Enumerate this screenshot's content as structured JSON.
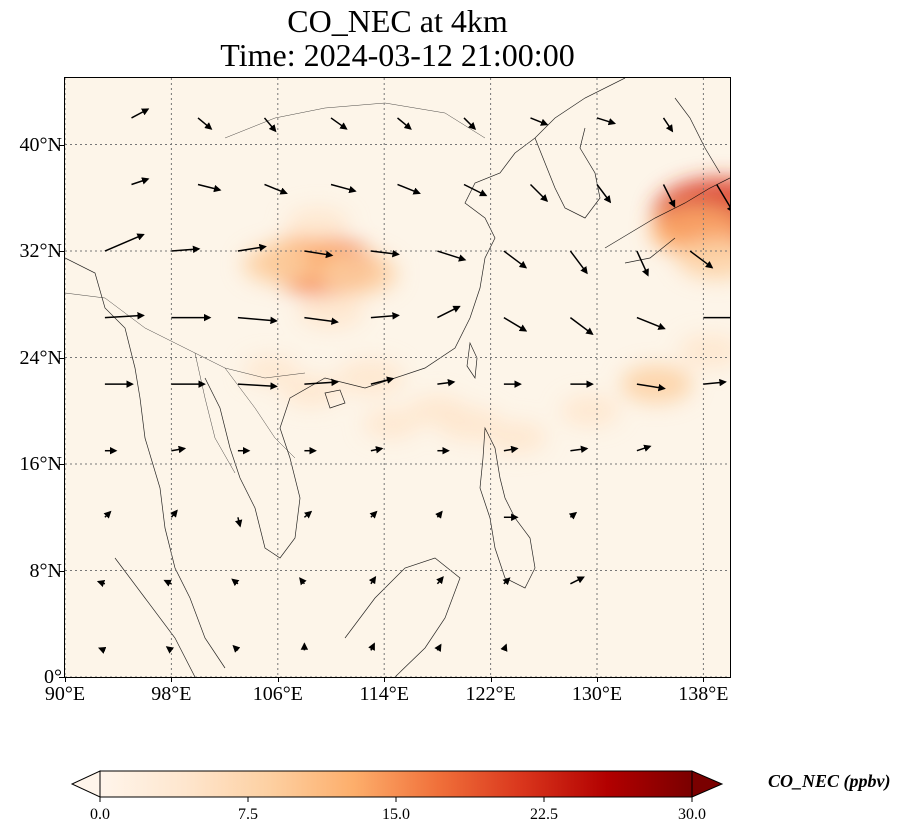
{
  "title": {
    "line1": "CO_NEC at 4km",
    "line2": "Time: 2024-03-12 21:00:00"
  },
  "map": {
    "extent": {
      "lon": [
        90,
        140
      ],
      "lat": [
        0,
        45
      ]
    },
    "gridlines": "dotted",
    "lat_ticks": [
      {
        "value": 40,
        "label": "40°N"
      },
      {
        "value": 32,
        "label": "32°N"
      },
      {
        "value": 24,
        "label": "24°N"
      },
      {
        "value": 16,
        "label": "16°N"
      },
      {
        "value": 8,
        "label": "8°N"
      },
      {
        "value": 0,
        "label": "0°"
      }
    ],
    "lon_ticks": [
      {
        "value": 90,
        "label": "90°E"
      },
      {
        "value": 98,
        "label": "98°E"
      },
      {
        "value": 106,
        "label": "106°E"
      },
      {
        "value": 114,
        "label": "114°E"
      },
      {
        "value": 122,
        "label": "122°E"
      },
      {
        "value": 130,
        "label": "130°E"
      },
      {
        "value": 138,
        "label": "138°E"
      }
    ],
    "background_color": "#fdf5e9",
    "hotspots": [
      {
        "lon": 109.5,
        "lat": 30.8,
        "value": 16
      },
      {
        "lon": 108.0,
        "lat": 31.3,
        "value": 11
      },
      {
        "lon": 112.0,
        "lat": 30.3,
        "value": 9
      },
      {
        "lon": 106.0,
        "lat": 31.0,
        "value": 7
      },
      {
        "lon": 109.0,
        "lat": 34.0,
        "value": 5
      },
      {
        "lon": 110.0,
        "lat": 27.5,
        "value": 6
      },
      {
        "lon": 113.0,
        "lat": 22.5,
        "value": 6
      },
      {
        "lon": 108.5,
        "lat": 21.5,
        "value": 4
      },
      {
        "lon": 139.3,
        "lat": 34.8,
        "value": 22
      },
      {
        "lon": 137.5,
        "lat": 33.5,
        "value": 12
      },
      {
        "lon": 139.0,
        "lat": 31.5,
        "value": 9
      },
      {
        "lon": 134.5,
        "lat": 22.0,
        "value": 7
      },
      {
        "lon": 138.5,
        "lat": 24.5,
        "value": 5
      },
      {
        "lon": 129.5,
        "lat": 20.0,
        "value": 4
      },
      {
        "lon": 120.5,
        "lat": 19.0,
        "value": 5
      },
      {
        "lon": 124.0,
        "lat": 18.0,
        "value": 4
      },
      {
        "lon": 118.0,
        "lat": 20.0,
        "value": 4
      },
      {
        "lon": 114.5,
        "lat": 19.0,
        "value": 3
      },
      {
        "lon": 105.5,
        "lat": 23.0,
        "value": 3
      }
    ]
  },
  "wind_vectors": [
    {
      "lon": 95,
      "lat": 42,
      "u": 1.5,
      "v": 0.8
    },
    {
      "lon": 100,
      "lat": 42,
      "u": 1.2,
      "v": -1.0
    },
    {
      "lon": 105,
      "lat": 42,
      "u": 1.0,
      "v": -1.2
    },
    {
      "lon": 110,
      "lat": 42,
      "u": 1.4,
      "v": -1.0
    },
    {
      "lon": 115,
      "lat": 42,
      "u": 1.2,
      "v": -1.0
    },
    {
      "lon": 120,
      "lat": 42,
      "u": 1.0,
      "v": -1.0
    },
    {
      "lon": 125,
      "lat": 42,
      "u": 1.5,
      "v": -0.6
    },
    {
      "lon": 130,
      "lat": 42,
      "u": 1.6,
      "v": -0.5
    },
    {
      "lon": 135,
      "lat": 42,
      "u": 0.8,
      "v": -1.2
    },
    {
      "lon": 95,
      "lat": 37,
      "u": 1.5,
      "v": 0.5
    },
    {
      "lon": 100,
      "lat": 37,
      "u": 2.0,
      "v": -0.5
    },
    {
      "lon": 105,
      "lat": 37,
      "u": 2.0,
      "v": -0.8
    },
    {
      "lon": 110,
      "lat": 37,
      "u": 2.2,
      "v": -0.6
    },
    {
      "lon": 115,
      "lat": 37,
      "u": 2.0,
      "v": -0.8
    },
    {
      "lon": 120,
      "lat": 37,
      "u": 2.0,
      "v": -1.0
    },
    {
      "lon": 125,
      "lat": 37,
      "u": 1.5,
      "v": -1.5
    },
    {
      "lon": 130,
      "lat": 37,
      "u": 1.2,
      "v": -1.6
    },
    {
      "lon": 135,
      "lat": 37,
      "u": 1.0,
      "v": -2.0
    },
    {
      "lon": 139,
      "lat": 37,
      "u": 1.5,
      "v": -2.5
    },
    {
      "lon": 93,
      "lat": 32,
      "u": 3.5,
      "v": 1.5
    },
    {
      "lon": 98,
      "lat": 32,
      "u": 2.5,
      "v": 0.2
    },
    {
      "lon": 103,
      "lat": 32,
      "u": 2.5,
      "v": 0.4
    },
    {
      "lon": 108,
      "lat": 32,
      "u": 2.5,
      "v": -0.4
    },
    {
      "lon": 113,
      "lat": 32,
      "u": 2.5,
      "v": -0.3
    },
    {
      "lon": 118,
      "lat": 32,
      "u": 2.5,
      "v": -0.8
    },
    {
      "lon": 123,
      "lat": 32,
      "u": 2.0,
      "v": -1.5
    },
    {
      "lon": 128,
      "lat": 32,
      "u": 1.5,
      "v": -2.0
    },
    {
      "lon": 133,
      "lat": 32,
      "u": 1.0,
      "v": -2.2
    },
    {
      "lon": 137,
      "lat": 32,
      "u": 2.0,
      "v": -1.5
    },
    {
      "lon": 93,
      "lat": 27,
      "u": 3.5,
      "v": 0.2
    },
    {
      "lon": 98,
      "lat": 27,
      "u": 3.5,
      "v": 0.0
    },
    {
      "lon": 103,
      "lat": 27,
      "u": 3.5,
      "v": -0.3
    },
    {
      "lon": 108,
      "lat": 27,
      "u": 3.0,
      "v": -0.4
    },
    {
      "lon": 113,
      "lat": 27,
      "u": 2.5,
      "v": 0.2
    },
    {
      "lon": 118,
      "lat": 27,
      "u": 2.0,
      "v": 1.0
    },
    {
      "lon": 123,
      "lat": 27,
      "u": 2.0,
      "v": -1.2
    },
    {
      "lon": 128,
      "lat": 27,
      "u": 2.0,
      "v": -1.5
    },
    {
      "lon": 133,
      "lat": 27,
      "u": 2.5,
      "v": -1.0
    },
    {
      "lon": 138,
      "lat": 27,
      "u": 3.0,
      "v": 0.0
    },
    {
      "lon": 93,
      "lat": 22,
      "u": 2.5,
      "v": 0.0
    },
    {
      "lon": 98,
      "lat": 22,
      "u": 3.0,
      "v": 0.0
    },
    {
      "lon": 103,
      "lat": 22,
      "u": 3.5,
      "v": -0.2
    },
    {
      "lon": 108,
      "lat": 22,
      "u": 3.0,
      "v": 0.2
    },
    {
      "lon": 113,
      "lat": 22,
      "u": 2.0,
      "v": 0.5
    },
    {
      "lon": 118,
      "lat": 22,
      "u": 1.5,
      "v": 0.2
    },
    {
      "lon": 123,
      "lat": 22,
      "u": 1.5,
      "v": 0.0
    },
    {
      "lon": 128,
      "lat": 22,
      "u": 2.0,
      "v": 0.0
    },
    {
      "lon": 133,
      "lat": 22,
      "u": 2.5,
      "v": -0.4
    },
    {
      "lon": 138,
      "lat": 22,
      "u": 2.0,
      "v": 0.2
    },
    {
      "lon": 93,
      "lat": 17,
      "u": 1.0,
      "v": 0.0
    },
    {
      "lon": 98,
      "lat": 17,
      "u": 1.2,
      "v": 0.2
    },
    {
      "lon": 103,
      "lat": 17,
      "u": 1.0,
      "v": 0.0
    },
    {
      "lon": 108,
      "lat": 17,
      "u": 1.0,
      "v": 0.0
    },
    {
      "lon": 113,
      "lat": 17,
      "u": 1.0,
      "v": 0.2
    },
    {
      "lon": 118,
      "lat": 17,
      "u": 1.0,
      "v": 0.0
    },
    {
      "lon": 123,
      "lat": 17,
      "u": 1.2,
      "v": 0.2
    },
    {
      "lon": 128,
      "lat": 17,
      "u": 1.5,
      "v": 0.2
    },
    {
      "lon": 133,
      "lat": 17,
      "u": 1.2,
      "v": 0.4
    },
    {
      "lon": 93,
      "lat": 12,
      "u": 0.5,
      "v": 0.5
    },
    {
      "lon": 98,
      "lat": 12,
      "u": 0.5,
      "v": 0.6
    },
    {
      "lon": 103,
      "lat": 12,
      "u": 0.2,
      "v": -0.8
    },
    {
      "lon": 108,
      "lat": 12,
      "u": 0.6,
      "v": 0.5
    },
    {
      "lon": 113,
      "lat": 12,
      "u": 0.5,
      "v": 0.5
    },
    {
      "lon": 118,
      "lat": 12,
      "u": 0.4,
      "v": 0.5
    },
    {
      "lon": 123,
      "lat": 12,
      "u": 1.2,
      "v": 0.0
    },
    {
      "lon": 128,
      "lat": 12,
      "u": 0.5,
      "v": 0.4
    },
    {
      "lon": 93,
      "lat": 7,
      "u": -0.6,
      "v": 0.2
    },
    {
      "lon": 98,
      "lat": 7,
      "u": -0.6,
      "v": 0.3
    },
    {
      "lon": 103,
      "lat": 7,
      "u": -0.5,
      "v": 0.4
    },
    {
      "lon": 108,
      "lat": 7,
      "u": -0.4,
      "v": 0.5
    },
    {
      "lon": 113,
      "lat": 7,
      "u": 0.4,
      "v": 0.6
    },
    {
      "lon": 118,
      "lat": 7,
      "u": 0.5,
      "v": 0.6
    },
    {
      "lon": 123,
      "lat": 7,
      "u": 0.5,
      "v": 0.5
    },
    {
      "lon": 128,
      "lat": 7,
      "u": 1.2,
      "v": 0.6
    },
    {
      "lon": 93,
      "lat": 2,
      "u": -0.5,
      "v": 0.2
    },
    {
      "lon": 98,
      "lat": 2,
      "u": -0.4,
      "v": 0.3
    },
    {
      "lon": 103,
      "lat": 2,
      "u": -0.4,
      "v": 0.4
    },
    {
      "lon": 108,
      "lat": 2,
      "u": 0.0,
      "v": 0.6
    },
    {
      "lon": 113,
      "lat": 2,
      "u": 0.3,
      "v": 0.6
    },
    {
      "lon": 118,
      "lat": 2,
      "u": 0.3,
      "v": 0.5
    },
    {
      "lon": 123,
      "lat": 2,
      "u": 0.2,
      "v": 0.5
    }
  ],
  "colorbar": {
    "label": "CO_NEC (ppbv)",
    "min": 0,
    "max": 30,
    "extend": "both",
    "colormap": "Oranges-to-darkred",
    "stops": [
      "#fff5eb",
      "#fee6ce",
      "#fdd0a2",
      "#fdae6b",
      "#f0703a",
      "#d9351c",
      "#b20000",
      "#7a0000"
    ],
    "ticks": [
      {
        "value": 0,
        "label": "0.0"
      },
      {
        "value": 7.5,
        "label": "7.5"
      },
      {
        "value": 15,
        "label": "15.0"
      },
      {
        "value": 22.5,
        "label": "22.5"
      },
      {
        "value": 30,
        "label": "30.0"
      }
    ]
  }
}
